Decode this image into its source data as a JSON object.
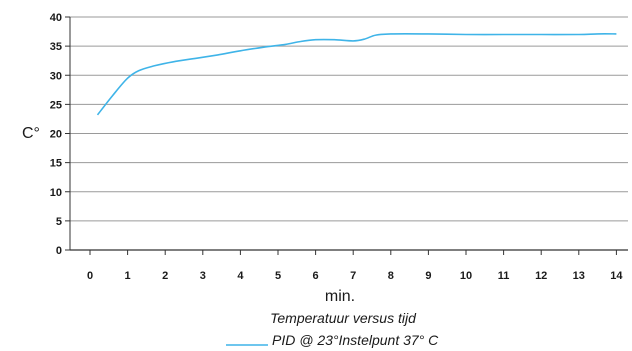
{
  "chart_data": {
    "type": "line",
    "title": "Temperatuur versus tijd",
    "xlabel": "min.",
    "ylabel": "C°",
    "x_ticks": [
      "0",
      "1",
      "2",
      "3",
      "4",
      "5",
      "6",
      "7",
      "8",
      "9",
      "10",
      "11",
      "12",
      "13",
      "14"
    ],
    "y_ticks": [
      "0",
      "5",
      "10",
      "15",
      "20",
      "25",
      "30",
      "35",
      "40"
    ],
    "xlim": [
      0,
      14
    ],
    "ylim": [
      0,
      40
    ],
    "grid": "horizontal",
    "legend_placement": "bottom-center",
    "series": [
      {
        "name": "PID @ 23°Instelpunt 37° C",
        "color": "#3fb4e8",
        "x": [
          0.2,
          0.6,
          1.0,
          1.3,
          1.7,
          2.2,
          2.8,
          3.4,
          4.0,
          4.6,
          5.2,
          5.6,
          6.0,
          6.5,
          7.0,
          7.3,
          7.6,
          8.0,
          9.0,
          10.0,
          11.0,
          12.0,
          13.0,
          13.5,
          14.0
        ],
        "y": [
          23.2,
          26.5,
          29.5,
          30.8,
          31.6,
          32.3,
          32.9,
          33.5,
          34.2,
          34.8,
          35.3,
          35.8,
          36.1,
          36.1,
          35.9,
          36.2,
          36.9,
          37.1,
          37.1,
          37.0,
          37.0,
          37.0,
          37.0,
          37.1,
          37.1
        ]
      }
    ]
  }
}
